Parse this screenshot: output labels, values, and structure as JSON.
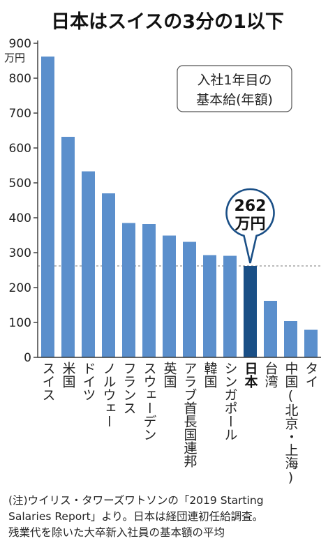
{
  "chart_data": {
    "type": "bar",
    "title": "日本はスイスの3分の1以下",
    "unit_label": "万円",
    "legend_box": [
      "入社1年目の",
      "基本給(年額)"
    ],
    "categories": [
      "スイス",
      "米国",
      "ドイツ",
      "ノルウェー",
      "フランス",
      "スウェーデン",
      "英国",
      "アラブ首長国連邦",
      "韓国",
      "シンガポール",
      "日本",
      "台湾",
      "中国(北京・上海)",
      "タイ"
    ],
    "values": [
      862,
      632,
      533,
      470,
      385,
      382,
      349,
      331,
      293,
      291,
      262,
      162,
      104,
      79
    ],
    "ylim": [
      0,
      900
    ],
    "yticks": [
      0,
      100,
      200,
      300,
      400,
      500,
      600,
      700,
      800,
      900
    ],
    "highlight_category": "日本",
    "callout": {
      "value": "262",
      "unit": "万円"
    },
    "reference_line_value": 262,
    "colors": {
      "bar": "#5b8fcc",
      "highlight": "#1a4f86",
      "reference_line": "#777777"
    },
    "grid": false
  },
  "note": [
    "(注)ウイリス・タワーズワトソンの「2019 Starting",
    "Salaries Report」より。日本は経団連初任給調査。",
    "残業代を除いた大卒新入社員の基本額の平均"
  ]
}
